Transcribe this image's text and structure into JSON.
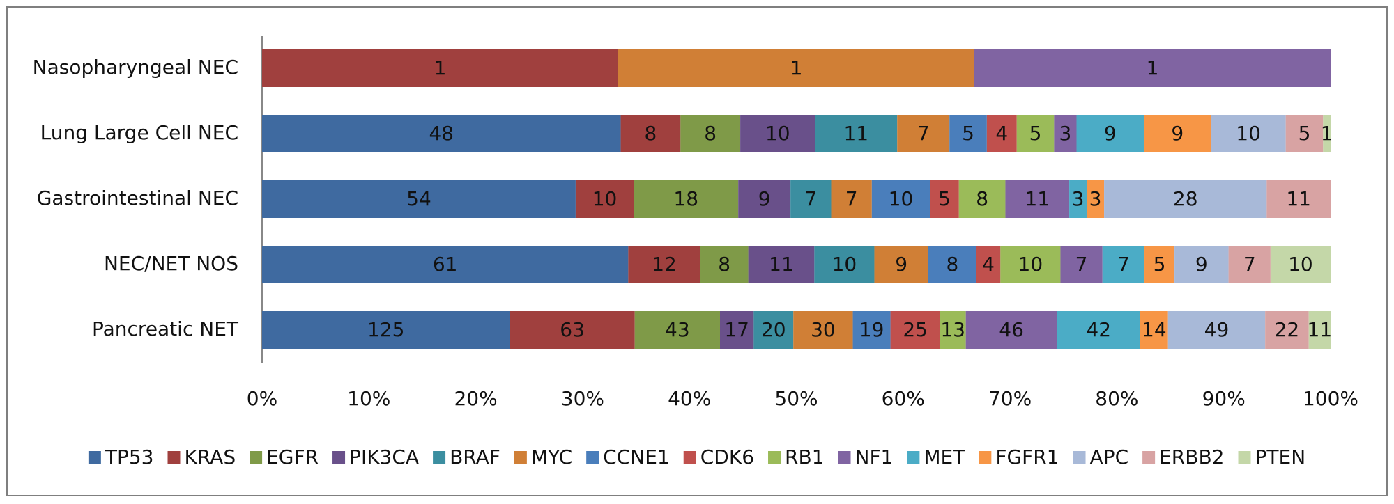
{
  "chart_data": {
    "type": "stacked_bar_100_horizontal",
    "categories": [
      "Nasopharyngeal NEC",
      "Lung Large Cell NEC",
      "Gastrointestinal NEC",
      "NEC/NET NOS",
      "Pancreatic NET"
    ],
    "series": [
      {
        "name": "TP53",
        "color": "#3f6aa0",
        "values": [
          0,
          48,
          54,
          61,
          125
        ]
      },
      {
        "name": "KRAS",
        "color": "#a0403e",
        "values": [
          1,
          8,
          10,
          12,
          63
        ]
      },
      {
        "name": "EGFR",
        "color": "#7f9a48",
        "values": [
          0,
          8,
          18,
          8,
          43
        ]
      },
      {
        "name": "PIK3CA",
        "color": "#69508a",
        "values": [
          0,
          10,
          9,
          11,
          17
        ]
      },
      {
        "name": "BRAF",
        "color": "#3b8ea0",
        "values": [
          0,
          11,
          7,
          10,
          20
        ]
      },
      {
        "name": "MYC",
        "color": "#d07f36",
        "values": [
          1,
          7,
          7,
          9,
          30
        ]
      },
      {
        "name": "CCNE1",
        "color": "#4a7ebb",
        "values": [
          0,
          5,
          10,
          8,
          19
        ]
      },
      {
        "name": "CDK6",
        "color": "#c0504d",
        "values": [
          0,
          4,
          5,
          4,
          25
        ]
      },
      {
        "name": "RB1",
        "color": "#9bbb59",
        "values": [
          0,
          5,
          8,
          10,
          13
        ]
      },
      {
        "name": "NF1",
        "color": "#8064a2",
        "values": [
          1,
          3,
          11,
          7,
          46
        ]
      },
      {
        "name": "MET",
        "color": "#4bacc6",
        "values": [
          0,
          9,
          3,
          7,
          42
        ]
      },
      {
        "name": "FGFR1",
        "color": "#f79646",
        "values": [
          0,
          9,
          3,
          5,
          14
        ]
      },
      {
        "name": "APC",
        "color": "#a8b9d8",
        "values": [
          0,
          10,
          28,
          9,
          49
        ]
      },
      {
        "name": "ERBB2",
        "color": "#d8a3a3",
        "values": [
          0,
          5,
          11,
          7,
          22
        ]
      },
      {
        "name": "PTEN",
        "color": "#c4d7a8",
        "values": [
          0,
          1,
          0,
          10,
          11
        ]
      }
    ],
    "xlim": [
      0,
      100
    ],
    "xticks": [
      {
        "value": 0,
        "label": "0%"
      },
      {
        "value": 10,
        "label": "10%"
      },
      {
        "value": 20,
        "label": "20%"
      },
      {
        "value": 30,
        "label": "30%"
      },
      {
        "value": 40,
        "label": "40%"
      },
      {
        "value": 50,
        "label": "50%"
      },
      {
        "value": 60,
        "label": "60%"
      },
      {
        "value": 70,
        "label": "70%"
      },
      {
        "value": 80,
        "label": "80%"
      },
      {
        "value": 90,
        "label": "90%"
      },
      {
        "value": 100,
        "label": "100%"
      }
    ],
    "legend": "bottom"
  }
}
